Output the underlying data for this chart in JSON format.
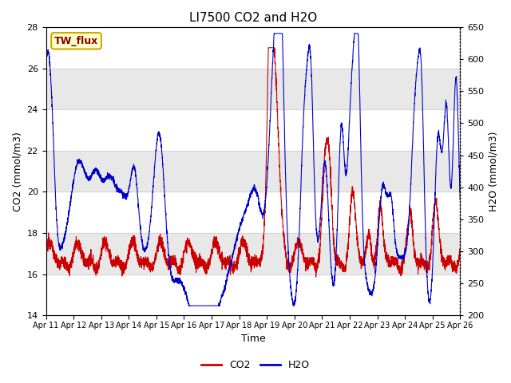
{
  "title": "LI7500 CO2 and H2O",
  "xlabel": "Time",
  "ylabel_left": "CO2 (mmol/m3)",
  "ylabel_right": "H2O (mmol/m3)",
  "ylim_left": [
    14,
    28
  ],
  "ylim_right": [
    200,
    650
  ],
  "yticks_left": [
    14,
    16,
    18,
    20,
    22,
    24,
    26,
    28
  ],
  "yticks_right": [
    200,
    250,
    300,
    350,
    400,
    450,
    500,
    550,
    600,
    650
  ],
  "xtick_labels": [
    "Apr 11",
    "Apr 12",
    "Apr 13",
    "Apr 14",
    "Apr 15",
    "Apr 16",
    "Apr 17",
    "Apr 18",
    "Apr 19",
    "Apr 20",
    "Apr 21",
    "Apr 22",
    "Apr 23",
    "Apr 24",
    "Apr 25",
    "Apr 26"
  ],
  "co2_color": "#cc0000",
  "h2o_color": "#0000cc",
  "background_color": "#ffffff",
  "plot_bg_color": "#ffffff",
  "band_color_light": "#e8e8e8",
  "annotation_text": "TW_flux",
  "annotation_bg": "#ffffcc",
  "annotation_edge": "#ccaa00",
  "annotation_text_color": "#880000",
  "legend_co2": "CO2",
  "legend_h2o": "H2O",
  "title_fontsize": 11,
  "axis_fontsize": 9,
  "tick_fontsize": 8
}
